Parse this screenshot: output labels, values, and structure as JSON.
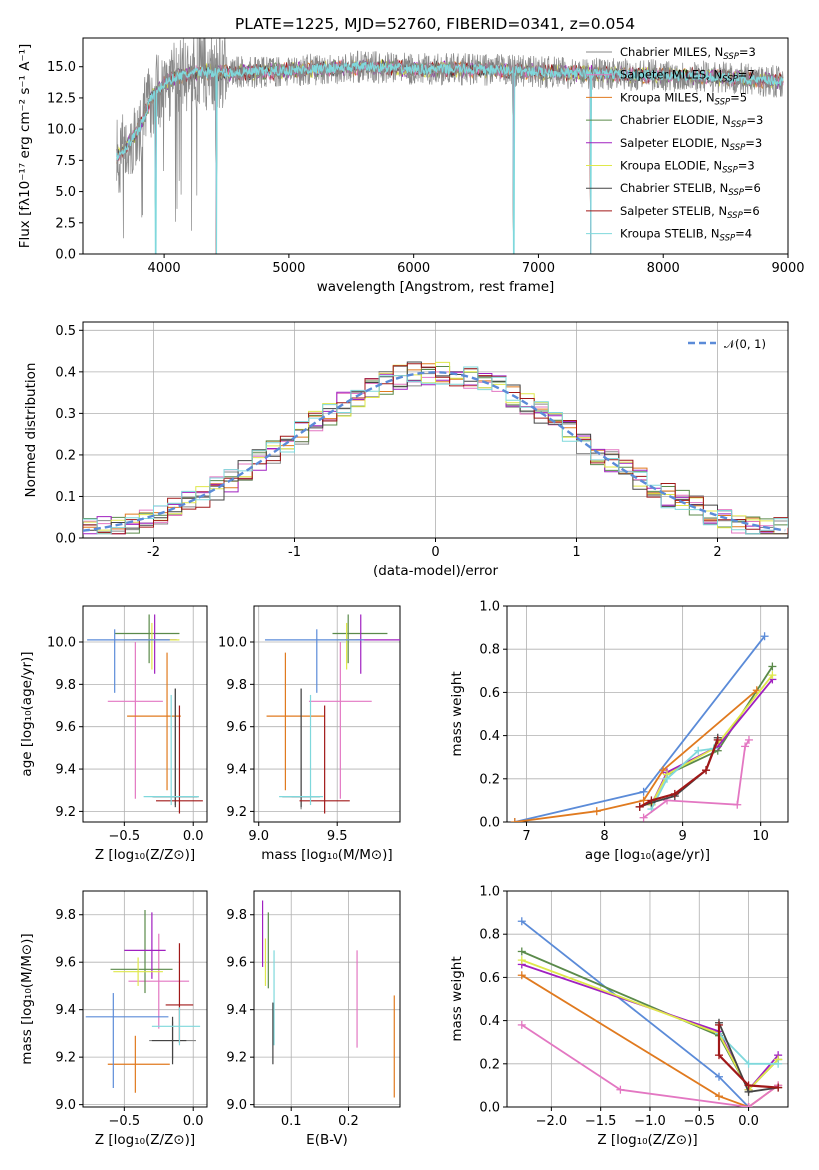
{
  "figure_title": "PLATE=1225, MJD=52760, FIBERID=0341, z=0.054",
  "series": [
    {
      "name": "Chabrier MILES, N",
      "sub": "SSP",
      "suffix": "=3",
      "color": "#888888"
    },
    {
      "name": "Salpeter MILES, N",
      "sub": "SSP",
      "suffix": "=7",
      "color": "#e377c2"
    },
    {
      "name": "Kroupa MILES, N",
      "sub": "SSP",
      "suffix": "=5",
      "color": "#e07a1f"
    },
    {
      "name": "Chabrier ELODIE, N",
      "sub": "SSP",
      "suffix": "=3",
      "color": "#5a8a4a"
    },
    {
      "name": "Salpeter ELODIE, N",
      "sub": "SSP",
      "suffix": "=3",
      "color": "#a020c0"
    },
    {
      "name": "Kroupa ELODIE, N",
      "sub": "SSP",
      "suffix": "=3",
      "color": "#dfe84a"
    },
    {
      "name": "Chabrier STELIB, N",
      "sub": "SSP",
      "suffix": "=6",
      "color": "#444444"
    },
    {
      "name": "Salpeter STELIB, N",
      "sub": "SSP",
      "suffix": "=6",
      "color": "#a01818"
    },
    {
      "name": "Kroupa STELIB, N",
      "sub": "SSP",
      "suffix": "=4",
      "color": "#7fd8dc"
    }
  ],
  "chart_data": [
    {
      "id": "spectrum",
      "type": "line",
      "xlabel": "wavelength [Angstrom, rest frame]",
      "ylabel": "Flux [fλ10⁻¹⁷ erg cm⁻² s⁻¹ A⁻¹]",
      "xlim": [
        3350,
        9000
      ],
      "ylim": [
        0,
        17.3
      ],
      "xticks": [
        4000,
        5000,
        6000,
        7000,
        8000,
        9000
      ],
      "yticks": [
        0.0,
        2.5,
        5.0,
        7.5,
        10.0,
        12.5,
        15.0
      ],
      "grid": false,
      "legend": "right",
      "data_x_range": [
        3620,
        8960
      ],
      "continuum": {
        "x": [
          3620,
          3700,
          3800,
          3900,
          4000,
          4100,
          4300,
          4500,
          4800,
          5200,
          5600,
          6000,
          6400,
          6800,
          7200,
          7600,
          8000,
          8400,
          8800,
          8960
        ],
        "y": [
          7.8,
          8.6,
          10.0,
          12.6,
          13.6,
          14.2,
          14.6,
          14.5,
          14.6,
          14.8,
          15.0,
          14.8,
          14.8,
          14.7,
          14.5,
          14.4,
          14.3,
          14.2,
          13.9,
          13.8
        ]
      },
      "dips": [
        {
          "x": 3933,
          "y": 0
        },
        {
          "x": 4420,
          "y": 0
        },
        {
          "x": 6802,
          "y": 0
        },
        {
          "x": 7420,
          "y": 0
        }
      ]
    },
    {
      "id": "residual-hist",
      "type": "histogram",
      "xlabel": "(data-model)/error",
      "ylabel": "Normed distribution",
      "xlim": [
        -2.5,
        2.5
      ],
      "ylim": [
        0,
        0.52
      ],
      "xticks": [
        -2,
        -1,
        0,
        1,
        2
      ],
      "yticks": [
        0.0,
        0.1,
        0.2,
        0.3,
        0.4,
        0.5
      ],
      "grid": true,
      "legend": "top-right",
      "gaussian_label": "𝒩(0, 1)",
      "gaussian": {
        "mean": 0,
        "sigma": 1,
        "color": "#5b8bd8"
      },
      "bin_width": 0.1
    },
    {
      "id": "age-vs-Z",
      "type": "errorbar",
      "xlabel": "Z [log₁₀(Z/Z⊙)]",
      "ylabel": "age  [log₁₀(age/yr)]",
      "xlim": [
        -0.8,
        0.1
      ],
      "ylim": [
        9.15,
        10.17
      ],
      "xticks": [
        -0.5,
        0.0
      ],
      "yticks": [
        9.2,
        9.4,
        9.6,
        9.8,
        10.0
      ],
      "grid": true,
      "points": [
        {
          "series": 0,
          "x": -0.13,
          "xerr": [
            0.17,
            0.17
          ],
          "y": 9.27,
          "yerr": [
            0.04,
            0.51
          ]
        },
        {
          "series": 1,
          "x": -0.42,
          "xerr": [
            0.2,
            0.2
          ],
          "y": 9.72,
          "yerr": [
            0.46,
            0.28
          ]
        },
        {
          "series": 2,
          "x": -0.19,
          "xerr": [
            0.29,
            0.1
          ],
          "y": 9.65,
          "yerr": [
            0.35,
            0.3
          ]
        },
        {
          "series": 3,
          "x": -0.32,
          "xerr": [
            0.25,
            0.22
          ],
          "y": 10.04,
          "yerr": [
            0.14,
            0.09
          ]
        },
        {
          "series": 4,
          "x": -0.28,
          "xerr": [
            0.16,
            0.16
          ],
          "y": 10.01,
          "yerr": [
            0.16,
            0.12
          ]
        },
        {
          "series": 5,
          "x": -0.3,
          "xerr": [
            0.2,
            0.2
          ],
          "y": 10.01,
          "yerr": [
            0.14,
            0.08
          ]
        },
        {
          "series": 6,
          "x": -0.13,
          "xerr": [
            0.16,
            0.16
          ],
          "y": 9.27,
          "yerr": [
            0.05,
            0.51
          ]
        },
        {
          "series": 7,
          "x": -0.1,
          "xerr": [
            0.17,
            0.17
          ],
          "y": 9.25,
          "yerr": [
            0.06,
            0.45
          ]
        },
        {
          "series": 8,
          "x": -0.16,
          "xerr": [
            0.2,
            0.2
          ],
          "y": 9.27,
          "yerr": [
            0.04,
            0.48
          ]
        },
        {
          "series": -1,
          "x": -0.57,
          "xerr": [
            0.2,
            0.4
          ],
          "y": 10.01,
          "yerr": [
            0.25,
            0.05
          ],
          "color": "#5b8bd8"
        }
      ]
    },
    {
      "id": "age-vs-mass",
      "type": "errorbar",
      "xlabel": "mass [log₁₀(M/M⊙)]",
      "ylabel": "",
      "xlim": [
        8.97,
        9.9
      ],
      "ylim": [
        9.15,
        10.17
      ],
      "xticks": [
        9.0,
        9.5
      ],
      "yticks": [
        9.2,
        9.4,
        9.6,
        9.8,
        10.0
      ],
      "grid": true,
      "points": [
        {
          "series": 0,
          "x": 9.27,
          "xerr": [
            0.06,
            0.06
          ],
          "y": 9.27,
          "yerr": [
            0.06,
            0.51
          ]
        },
        {
          "series": 1,
          "x": 9.52,
          "xerr": [
            0.2,
            0.2
          ],
          "y": 9.72,
          "yerr": [
            0.46,
            0.28
          ]
        },
        {
          "series": 2,
          "x": 9.17,
          "xerr": [
            0.12,
            0.25
          ],
          "y": 9.65,
          "yerr": [
            0.35,
            0.3
          ]
        },
        {
          "series": 3,
          "x": 9.57,
          "xerr": [
            0.1,
            0.25
          ],
          "y": 10.04,
          "yerr": [
            0.14,
            0.09
          ]
        },
        {
          "series": 4,
          "x": 9.65,
          "xerr": [
            0.1,
            0.28
          ],
          "y": 10.01,
          "yerr": [
            0.16,
            0.12
          ]
        },
        {
          "series": 5,
          "x": 9.56,
          "xerr": [
            0.06,
            0.06
          ],
          "y": 10.01,
          "yerr": [
            0.14,
            0.08
          ]
        },
        {
          "series": 6,
          "x": 9.27,
          "xerr": [
            0.12,
            0.12
          ],
          "y": 9.27,
          "yerr": [
            0.05,
            0.51
          ]
        },
        {
          "series": 7,
          "x": 9.42,
          "xerr": [
            0.16,
            0.16
          ],
          "y": 9.25,
          "yerr": [
            0.06,
            0.45
          ]
        },
        {
          "series": 8,
          "x": 9.33,
          "xerr": [
            0.2,
            0.08
          ],
          "y": 9.27,
          "yerr": [
            0.04,
            0.48
          ]
        },
        {
          "series": -1,
          "x": 9.37,
          "xerr": [
            0.33,
            0.3
          ],
          "y": 10.01,
          "yerr": [
            0.25,
            0.05
          ],
          "color": "#5b8bd8"
        }
      ]
    },
    {
      "id": "massweight-vs-age",
      "type": "line",
      "xlabel": "age  [log₁₀(age/yr)]",
      "ylabel": "mass weight",
      "xlim": [
        6.75,
        10.35
      ],
      "ylim": [
        0,
        1.0
      ],
      "xticks": [
        7,
        8,
        9,
        10
      ],
      "yticks": [
        0.0,
        0.2,
        0.4,
        0.6,
        0.8,
        1.0
      ],
      "grid": true,
      "series_lines": [
        {
          "color": "#5b8bd8",
          "x": [
            6.85,
            8.5,
            10.05
          ],
          "y": [
            0.0,
            0.14,
            0.86
          ]
        },
        {
          "color": "#5a8a4a",
          "x": [
            8.6,
            8.8,
            9.45,
            10.15
          ],
          "y": [
            0.08,
            0.22,
            0.33,
            0.72
          ]
        },
        {
          "color": "#e07a1f",
          "x": [
            6.85,
            7.9,
            8.5,
            8.75,
            9.95
          ],
          "y": [
            0.0,
            0.05,
            0.1,
            0.24,
            0.61
          ]
        },
        {
          "color": "#a020c0",
          "x": [
            8.6,
            8.8,
            9.45,
            10.15
          ],
          "y": [
            0.08,
            0.23,
            0.35,
            0.66
          ]
        },
        {
          "color": "#dfe84a",
          "x": [
            8.6,
            8.8,
            9.4,
            10.15
          ],
          "y": [
            0.08,
            0.22,
            0.34,
            0.68
          ]
        },
        {
          "color": "#7fd8dc",
          "x": [
            8.6,
            8.8,
            9.2,
            9.4
          ],
          "y": [
            0.06,
            0.2,
            0.33,
            0.34
          ]
        },
        {
          "color": "#e377c2",
          "x": [
            8.5,
            8.8,
            9.7,
            9.8,
            9.85
          ],
          "y": [
            0.02,
            0.1,
            0.08,
            0.35,
            0.38
          ]
        },
        {
          "color": "#444444",
          "x": [
            8.45,
            8.6,
            8.9,
            9.3,
            9.45
          ],
          "y": [
            0.07,
            0.09,
            0.12,
            0.24,
            0.39
          ]
        },
        {
          "color": "#a01818",
          "x": [
            8.45,
            8.6,
            8.9,
            9.3,
            9.45
          ],
          "y": [
            0.07,
            0.1,
            0.13,
            0.24,
            0.38
          ]
        }
      ]
    },
    {
      "id": "mass-vs-Z",
      "type": "errorbar",
      "xlabel": "Z [log₁₀(Z/Z⊙)]",
      "ylabel": "mass [log₁₀(M/M⊙)]",
      "xlim": [
        -0.8,
        0.1
      ],
      "ylim": [
        8.99,
        9.9
      ],
      "xticks": [
        -0.5,
        0.0
      ],
      "yticks": [
        9.0,
        9.2,
        9.4,
        9.6,
        9.8
      ],
      "grid": true,
      "points": [
        {
          "series": 0,
          "x": -0.15,
          "xerr": [
            0.17,
            0.17
          ],
          "y": 9.27,
          "yerr": [
            0.08,
            0.08
          ]
        },
        {
          "series": 1,
          "x": -0.25,
          "xerr": [
            0.22,
            0.22
          ],
          "y": 9.52,
          "yerr": [
            0.2,
            0.2
          ]
        },
        {
          "series": 2,
          "x": -0.42,
          "xerr": [
            0.2,
            0.25
          ],
          "y": 9.17,
          "yerr": [
            0.12,
            0.12
          ]
        },
        {
          "series": 3,
          "x": -0.35,
          "xerr": [
            0.25,
            0.2
          ],
          "y": 9.57,
          "yerr": [
            0.1,
            0.25
          ]
        },
        {
          "series": 4,
          "x": -0.3,
          "xerr": [
            0.2,
            0.1
          ],
          "y": 9.65,
          "yerr": [
            0.12,
            0.16
          ]
        },
        {
          "series": 5,
          "x": -0.4,
          "xerr": [
            0.18,
            0.18
          ],
          "y": 9.56,
          "yerr": [
            0.06,
            0.06
          ]
        },
        {
          "series": 6,
          "x": -0.15,
          "xerr": [
            0.15,
            0.1
          ],
          "y": 9.27,
          "yerr": [
            0.1,
            0.1
          ]
        },
        {
          "series": 7,
          "x": -0.1,
          "xerr": [
            0.1,
            0.1
          ],
          "y": 9.42,
          "yerr": [
            0.16,
            0.26
          ]
        },
        {
          "series": 8,
          "x": -0.1,
          "xerr": [
            0.2,
            0.15
          ],
          "y": 9.33,
          "yerr": [
            0.08,
            0.08
          ]
        },
        {
          "series": -1,
          "x": -0.58,
          "xerr": [
            0.2,
            0.4
          ],
          "y": 9.37,
          "yerr": [
            0.3,
            0.1
          ],
          "color": "#5b8bd8"
        }
      ]
    },
    {
      "id": "mass-vs-ebv",
      "type": "errorbar",
      "xlabel": "E(B-V)",
      "ylabel": "",
      "xlim": [
        0.035,
        0.29
      ],
      "ylim": [
        8.99,
        9.9
      ],
      "xticks": [
        0.1,
        0.2
      ],
      "yticks": [
        9.0,
        9.2,
        9.4,
        9.6,
        9.8
      ],
      "grid": true,
      "points": [
        {
          "series": 1,
          "x": 0.215,
          "xerr": [
            0,
            0
          ],
          "y": 9.44,
          "yerr": [
            0.2,
            0.21
          ]
        },
        {
          "series": 2,
          "x": 0.28,
          "xerr": [
            0,
            0
          ],
          "y": 9.25,
          "yerr": [
            0.22,
            0.21
          ]
        },
        {
          "series": 4,
          "x": 0.05,
          "xerr": [
            0,
            0
          ],
          "y": 9.72,
          "yerr": [
            0.14,
            0.14
          ]
        },
        {
          "series": 5,
          "x": 0.055,
          "xerr": [
            0,
            0
          ],
          "y": 9.6,
          "yerr": [
            0.1,
            0.1
          ]
        },
        {
          "series": 3,
          "x": 0.06,
          "xerr": [
            0,
            0
          ],
          "y": 9.65,
          "yerr": [
            0.16,
            0.16
          ]
        },
        {
          "series": 8,
          "x": 0.07,
          "xerr": [
            0,
            0
          ],
          "y": 9.45,
          "yerr": [
            0.2,
            0.2
          ]
        },
        {
          "series": 6,
          "x": 0.068,
          "xerr": [
            0,
            0
          ],
          "y": 9.3,
          "yerr": [
            0.13,
            0.13
          ]
        }
      ]
    },
    {
      "id": "massweight-vs-Z",
      "type": "line",
      "xlabel": "Z [log₁₀(Z/Z⊙)]",
      "ylabel": "mass weight",
      "xlim": [
        -2.45,
        0.4
      ],
      "ylim": [
        0,
        1.0
      ],
      "xticks": [
        -2.0,
        -1.5,
        -1.0,
        -0.5,
        0.0
      ],
      "yticks": [
        0.0,
        0.2,
        0.4,
        0.6,
        0.8,
        1.0
      ],
      "grid": true,
      "series_lines": [
        {
          "color": "#5b8bd8",
          "x": [
            -2.3,
            -0.3,
            0.0
          ],
          "y": [
            0.86,
            0.14,
            0.0
          ]
        },
        {
          "color": "#5a8a4a",
          "x": [
            -2.3,
            -0.3,
            0.0,
            0.3
          ],
          "y": [
            0.72,
            0.33,
            0.08,
            0.22
          ]
        },
        {
          "color": "#e07a1f",
          "x": [
            -2.3,
            -0.3,
            0.0,
            0.3
          ],
          "y": [
            0.61,
            0.05,
            0.0,
            0.1
          ]
        },
        {
          "color": "#a020c0",
          "x": [
            -2.3,
            -0.3,
            0.0,
            0.3
          ],
          "y": [
            0.66,
            0.35,
            0.08,
            0.24
          ]
        },
        {
          "color": "#dfe84a",
          "x": [
            -2.3,
            -0.3,
            0.0,
            0.3
          ],
          "y": [
            0.68,
            0.34,
            0.08,
            0.22
          ]
        },
        {
          "color": "#7fd8dc",
          "x": [
            -0.3,
            0.0,
            0.3
          ],
          "y": [
            0.34,
            0.2,
            0.2
          ]
        },
        {
          "color": "#e377c2",
          "x": [
            -2.3,
            -1.3,
            0.0,
            0.3
          ],
          "y": [
            0.38,
            0.08,
            0.0,
            0.1
          ]
        },
        {
          "color": "#444444",
          "x": [
            -0.3,
            0.0,
            0.3
          ],
          "y": [
            0.39,
            0.07,
            0.09
          ]
        },
        {
          "color": "#a01818",
          "x": [
            -0.3,
            -0.3,
            0.0,
            0.3
          ],
          "y": [
            0.38,
            0.24,
            0.1,
            0.09
          ]
        }
      ]
    }
  ]
}
